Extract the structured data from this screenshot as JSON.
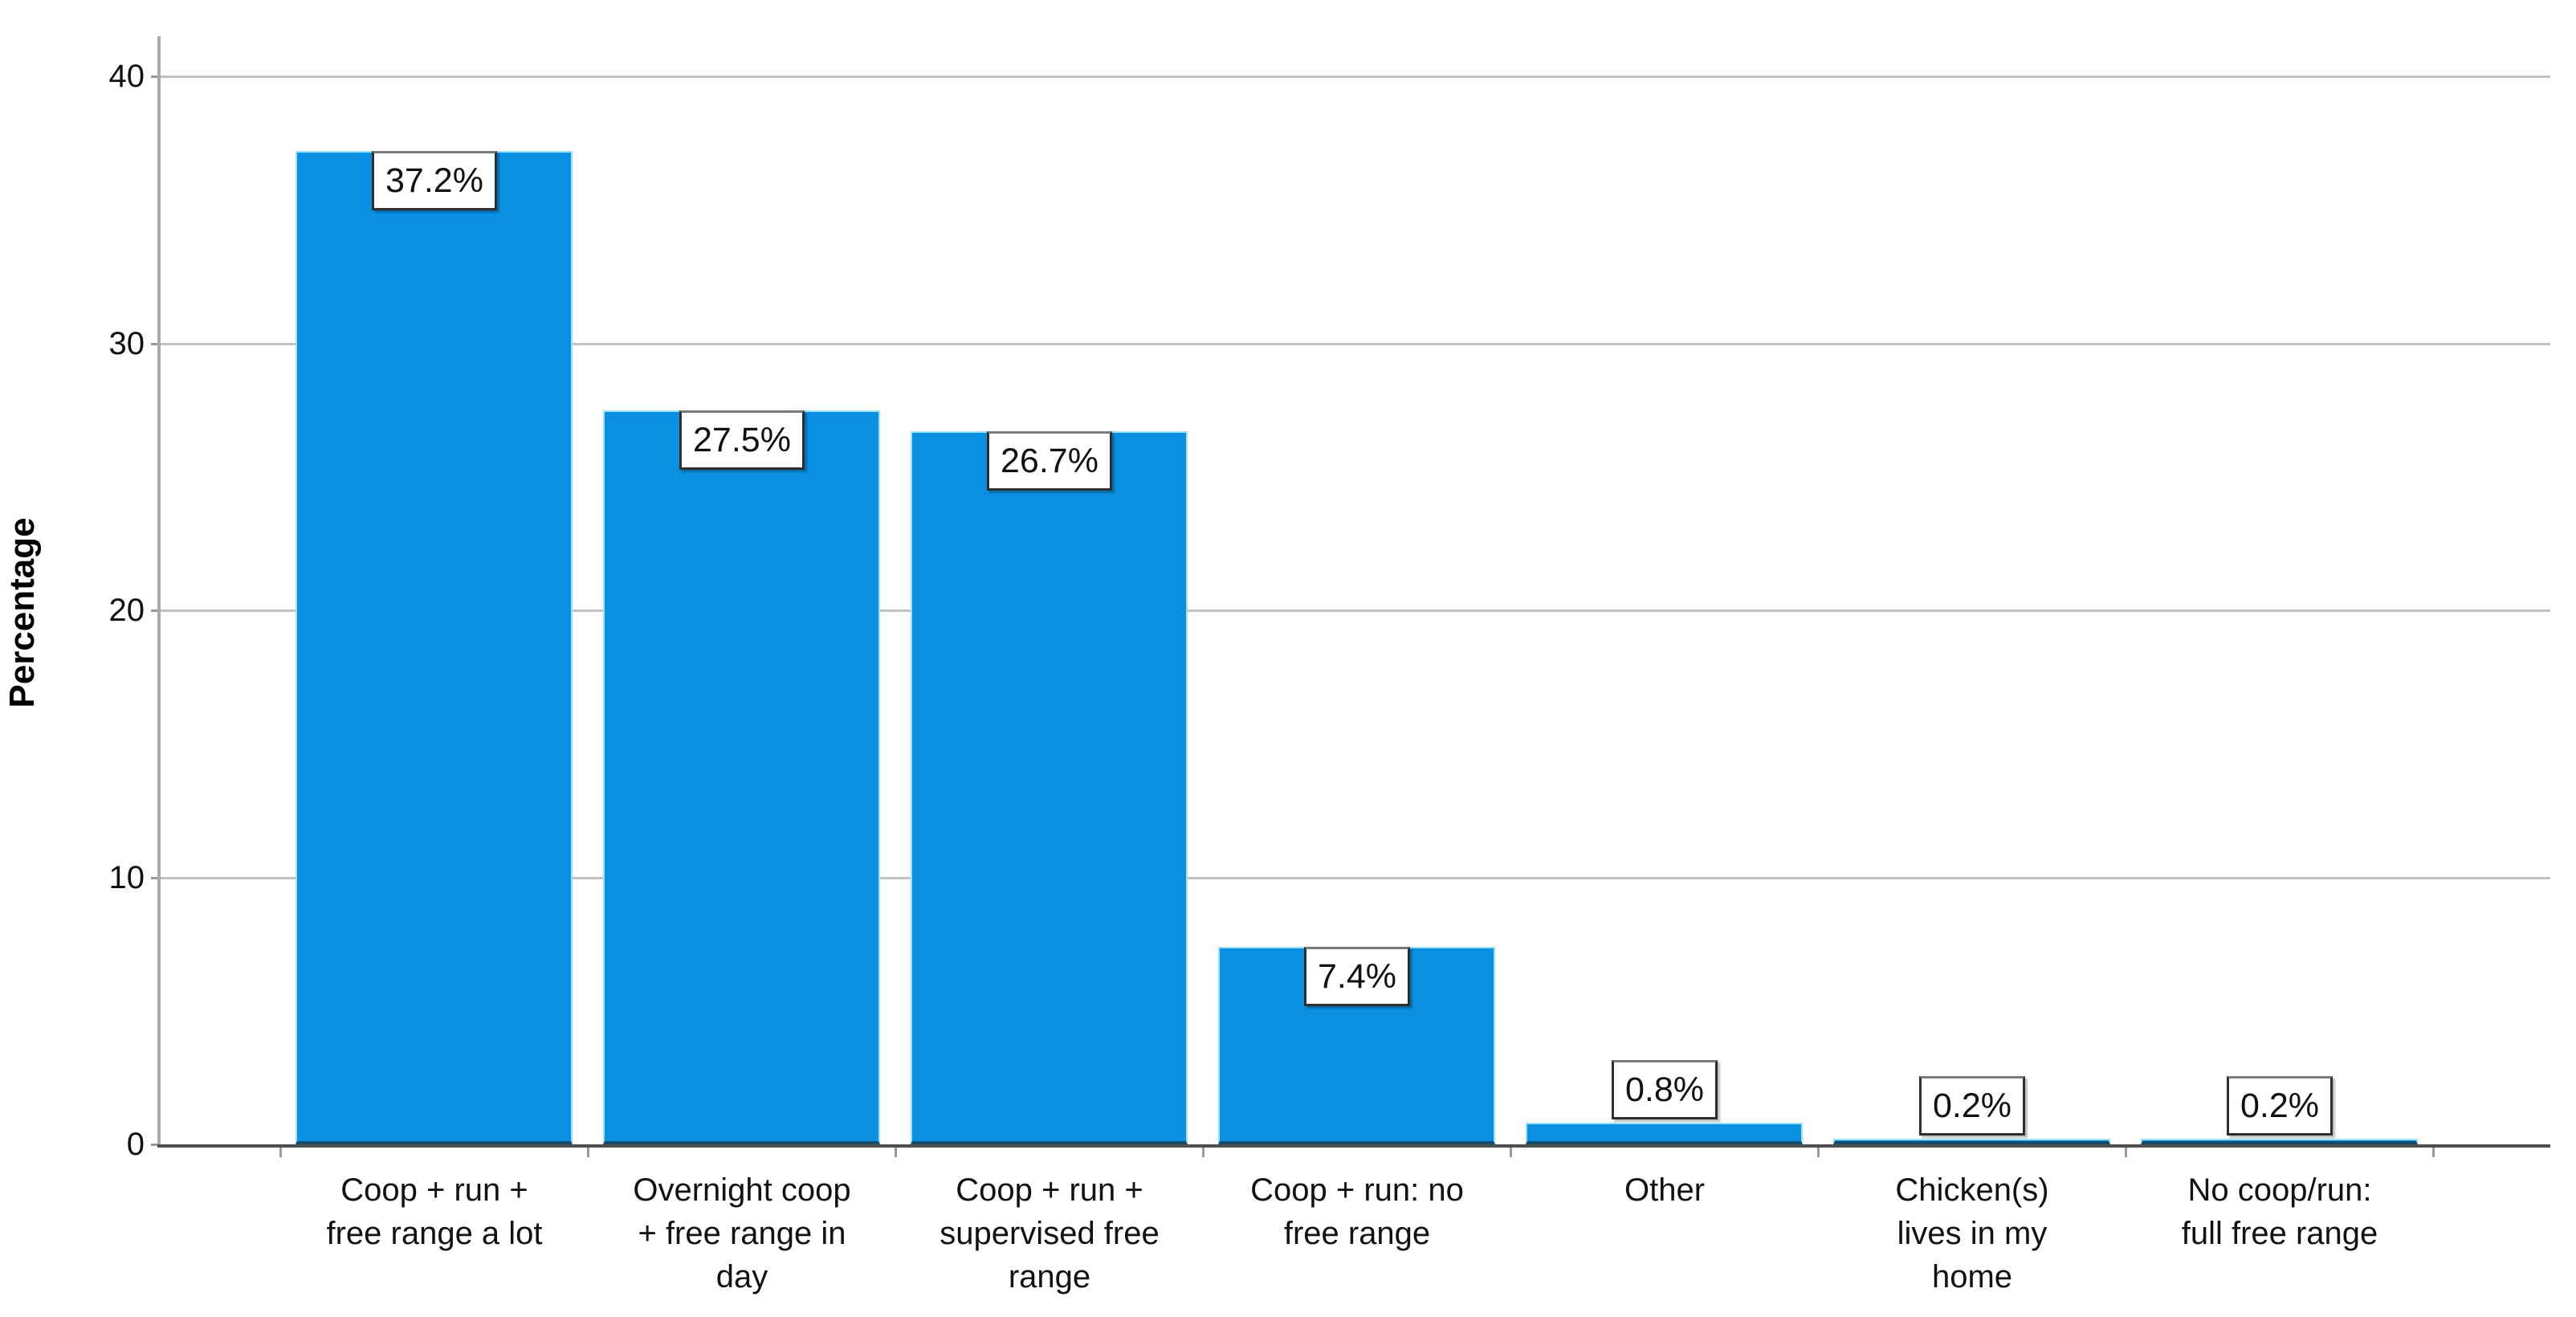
{
  "chart_data": {
    "type": "bar",
    "title": "",
    "xlabel": "",
    "ylabel": "Percentage",
    "categories": [
      "Coop + run +\nfree range a lot",
      "Overnight coop\n+ free range in\nday",
      "Coop + run +\nsupervised free\nrange",
      "Coop + run: no\nfree range",
      "Other",
      "Chicken(s)\nlives in my\nhome",
      "No coop/run:\nfull free range"
    ],
    "values": [
      37.2,
      27.5,
      26.7,
      7.4,
      0.8,
      0.2,
      0.2
    ],
    "value_labels": [
      "37.2%",
      "27.5%",
      "26.7%",
      "7.4%",
      "0.8%",
      "0.2%",
      "0.2%"
    ],
    "ytick_values": [
      0,
      10,
      20,
      30,
      40
    ],
    "ytick_labels": [
      "0",
      "10",
      "20",
      "30",
      "40"
    ],
    "ylim": [
      0,
      42
    ],
    "grid": "horizontal gridlines at each y tick",
    "legend": "none",
    "colors": {
      "bar_fill": "#0a90e2",
      "bar_edge_light": "#9ce2fa",
      "bar_edge_dark": "#134e70",
      "gridline": "#c3c3c3",
      "y_axis_line": "#aaaaaa",
      "x_axis_line": "#4f4f4f",
      "tick": "#9a9a9a",
      "label_box_border": "#2e2e2e",
      "text": "#111111"
    }
  }
}
